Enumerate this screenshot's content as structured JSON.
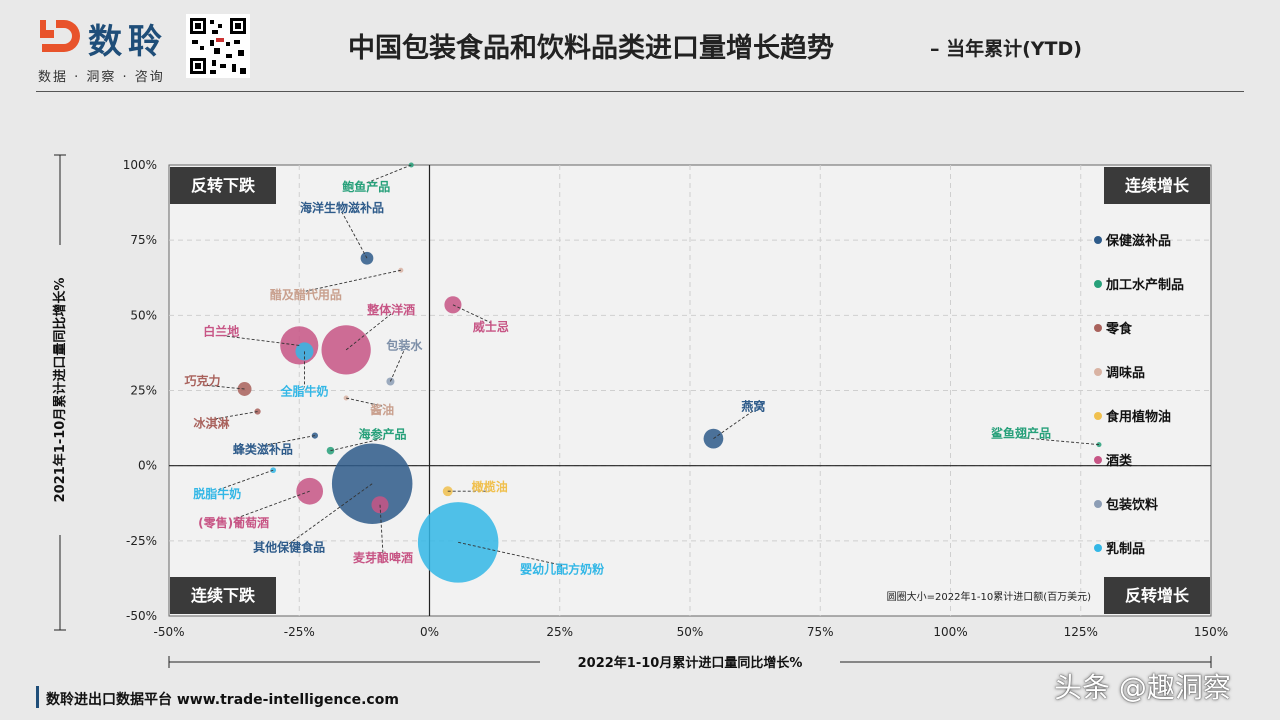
{
  "header": {
    "brand_name": "数聆",
    "brand_tagline": "数据 · 洞察 · 咨询",
    "title": "中国包装食品和饮料品类进口量增长趋势",
    "subtitle": "– 当年累计(YTD)"
  },
  "footer": {
    "source": "数聆进出口数据平台 www.trade-intelligence.com",
    "watermark": "头条 @趣洞察"
  },
  "colors": {
    "title": "#222222",
    "brand_blue": "#1f4e79",
    "brand_orange": "#e8532b",
    "quadrant_box": "#3a3a3a"
  },
  "chart_data": {
    "type": "scatter",
    "xlabel": "2022年1-10月累计进口量同比增长%",
    "ylabel": "2021年1-10月累计进口量同比增长%",
    "xlim": [
      -50,
      150
    ],
    "ylim": [
      -50,
      100
    ],
    "xticks": [
      -50,
      -25,
      0,
      25,
      50,
      75,
      100,
      125,
      150
    ],
    "yticks": [
      -50,
      -25,
      0,
      25,
      50,
      75,
      100
    ],
    "grid": true,
    "size_note": "圆圈大小=2022年1-10累计进口额(百万美元)",
    "quadrants": [
      {
        "label": "反转下跌",
        "position": "top-left"
      },
      {
        "label": "连续增长",
        "position": "top-right"
      },
      {
        "label": "连续下跌",
        "position": "bottom-left"
      },
      {
        "label": "反转增长",
        "position": "bottom-right"
      }
    ],
    "legend": {
      "placement": "right",
      "items": [
        {
          "name": "保健滋补品",
          "color": "#2e5b8a"
        },
        {
          "name": "加工水产制品",
          "color": "#27a07a"
        },
        {
          "name": "零食",
          "color": "#a9625c"
        },
        {
          "name": "调味品",
          "color": "#d9b3a3"
        },
        {
          "name": "食用植物油",
          "color": "#f0c04e"
        },
        {
          "name": "酒类",
          "color": "#c75585"
        },
        {
          "name": "包装饮料",
          "color": "#8c9db5"
        },
        {
          "name": "乳制品",
          "color": "#33b7e6"
        }
      ]
    },
    "points": [
      {
        "label": "鲍鱼产品",
        "category": "加工水产制品",
        "x": -3.5,
        "y": 100,
        "size": 0.5,
        "ldx": -45,
        "ldy": 22
      },
      {
        "label": "海洋生物滋补品",
        "category": "保健滋补品",
        "x": -12,
        "y": 69,
        "size": 50,
        "ldx": -25,
        "ldy": -50
      },
      {
        "label": "醋及醋代用品",
        "category": "调味品",
        "x": -5.5,
        "y": 65,
        "size": 0.5,
        "ldx": -95,
        "ldy": 25
      },
      {
        "label": "整体洋酒",
        "category": "酒类",
        "x": -16,
        "y": 38.5,
        "size": 750,
        "ldx": 45,
        "ldy": -40
      },
      {
        "label": "白兰地",
        "category": "酒类",
        "x": -25,
        "y": 40,
        "size": 450,
        "ldx": -78,
        "ldy": -14
      },
      {
        "label": "全脂牛奶",
        "category": "乳制品",
        "x": -24,
        "y": 38,
        "size": 100,
        "ldx": 0,
        "ldy": 40
      },
      {
        "label": "包装水",
        "category": "包装饮料",
        "x": -7.5,
        "y": 28,
        "size": 20,
        "ldx": 14,
        "ldy": -36
      },
      {
        "label": "巧克力",
        "category": "零食",
        "x": -35.5,
        "y": 25.5,
        "size": 60,
        "ldx": -42,
        "ldy": -8
      },
      {
        "label": "酱油",
        "category": "调味品",
        "x": -16,
        "y": 22.5,
        "size": 0.5,
        "ldx": 36,
        "ldy": 12
      },
      {
        "label": "冰淇淋",
        "category": "零食",
        "x": -33,
        "y": 18,
        "size": 12,
        "ldx": -46,
        "ldy": 12
      },
      {
        "label": "威士忌",
        "category": "酒类",
        "x": 4.5,
        "y": 53.5,
        "size": 90,
        "ldx": 38,
        "ldy": 22
      },
      {
        "label": "燕窝",
        "category": "保健滋补品",
        "x": 54.5,
        "y": 9,
        "size": 120,
        "ldx": 40,
        "ldy": -32
      },
      {
        "label": "鲨鱼翅产品",
        "category": "加工水产制品",
        "x": 128.5,
        "y": 7,
        "size": 0.5,
        "ldx": -78,
        "ldy": -11
      },
      {
        "label": "蜂类滋补品",
        "category": "保健滋补品",
        "x": -22,
        "y": 10,
        "size": 12,
        "ldx": -52,
        "ldy": 14
      },
      {
        "label": "海参产品",
        "category": "加工水产制品",
        "x": -19,
        "y": 5,
        "size": 18,
        "ldx": 52,
        "ldy": -16
      },
      {
        "label": "脱脂牛奶",
        "category": "乳制品",
        "x": -30,
        "y": -1.5,
        "size": 10,
        "ldx": -56,
        "ldy": 24
      },
      {
        "label": "(零售)葡萄酒",
        "category": "酒类",
        "x": -23,
        "y": -8.5,
        "size": 220,
        "ldx": -76,
        "ldy": 32
      },
      {
        "label": "其他保健食品",
        "category": "保健滋补品",
        "x": -11,
        "y": -6,
        "size": 2000,
        "ldx": -83,
        "ldy": 64
      },
      {
        "label": "麦芽酿啤酒",
        "category": "酒类",
        "x": -9.5,
        "y": -13,
        "size": 90,
        "ldx": 3,
        "ldy": 53
      },
      {
        "label": "橄榄油",
        "category": "食用植物油",
        "x": 3.5,
        "y": -8.5,
        "size": 30,
        "ldx": 42,
        "ldy": -4
      },
      {
        "label": "婴幼儿配方奶粉",
        "category": "乳制品",
        "x": 5.5,
        "y": -25.5,
        "size": 2000,
        "ldx": 104,
        "ldy": 27
      }
    ]
  }
}
